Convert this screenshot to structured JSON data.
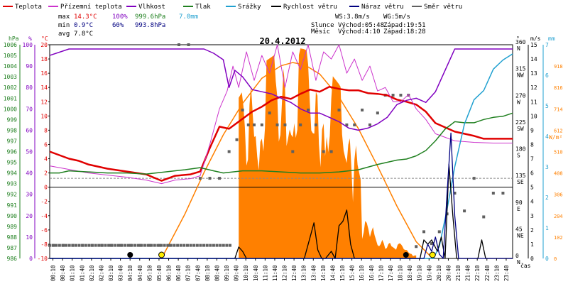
{
  "legend": {
    "items": [
      {
        "label": "Teplota",
        "color": "#e00000"
      },
      {
        "label": "Přízemní teplota",
        "color": "#cc33cc"
      },
      {
        "label": "Vlhkost",
        "color": "#8000c0"
      },
      {
        "label": "Tlak",
        "color": "#208020"
      },
      {
        "label": "Srážky",
        "color": "#20a0d0"
      },
      {
        "label": "Rychlost větru",
        "color": "#000000"
      },
      {
        "label": "Náraz větru",
        "color": "#000080"
      },
      {
        "label": "Směr větru",
        "color": "#606060"
      }
    ]
  },
  "stats": {
    "max_label": "max",
    "max_temp": "14.3°C",
    "max_hum": "100%",
    "max_press": "999.6hPa",
    "rain_total": "7.0mm",
    "min_label": "min",
    "min_temp": "0.9°C",
    "min_hum": "60%",
    "min_press": "993.8hPa",
    "avg_label": "avg",
    "avg_temp": "7.8°C"
  },
  "wind_info": {
    "ws": "WS:3.8m/s",
    "wg": "WG:5m/s"
  },
  "sun_info": {
    "label": "Slunce",
    "rise": "Východ:05:48",
    "set": "Západ:19:51"
  },
  "moon_info": {
    "label": "Měsíc",
    "rise": "Východ:4:10",
    "set": "Západ:18:28"
  },
  "title": "20.4.2012",
  "axis_units": {
    "hpa": "hPa",
    "pct": "%",
    "degc": "°C",
    "deg": "°",
    "ms": "m/s",
    "mm": "mm",
    "wm2": "W/m²",
    "time": "čas"
  },
  "chart_data": {
    "type": "line",
    "title": "20.4.2012",
    "x_ticks": [
      "00:10",
      "00:40",
      "01:10",
      "01:40",
      "02:10",
      "02:40",
      "03:10",
      "03:40",
      "04:10",
      "04:40",
      "05:10",
      "05:40",
      "06:10",
      "06:40",
      "07:10",
      "07:40",
      "08:10",
      "08:40",
      "09:10",
      "09:40",
      "10:10",
      "10:40",
      "11:10",
      "11:40",
      "12:10",
      "12:40",
      "13:10",
      "13:40",
      "14:10",
      "14:40",
      "15:10",
      "15:40",
      "16:10",
      "16:40",
      "17:10",
      "17:40",
      "18:10",
      "18:40",
      "19:10",
      "19:40",
      "20:10",
      "20:40",
      "21:10",
      "21:40",
      "22:10",
      "22:40",
      "23:10",
      "23:40"
    ],
    "xlim": [
      0,
      24
    ],
    "axes": {
      "temp_c": {
        "ticks": [
          -10,
          -8,
          -6,
          -4,
          -2,
          0,
          2,
          4,
          6,
          8,
          10,
          12,
          14,
          16,
          18,
          20
        ],
        "range": [
          -10,
          20
        ]
      },
      "pressure_hpa": {
        "ticks": [
          986,
          987,
          988,
          989,
          990,
          991,
          992,
          993,
          994,
          995,
          996,
          997,
          998,
          999,
          1000,
          1001,
          1002,
          1003,
          1004,
          1005,
          1006
        ],
        "range": [
          986,
          1006
        ]
      },
      "humidity_pct": {
        "ticks": [
          0,
          10,
          20,
          30,
          40,
          50,
          60,
          70,
          80,
          90,
          100
        ],
        "range": [
          0,
          100
        ]
      },
      "wind_dir_deg": {
        "ticks": [
          0,
          45,
          90,
          135,
          180,
          225,
          270,
          315,
          360
        ],
        "labels": [
          "N",
          "NE",
          "E",
          "SE",
          "S",
          "SW",
          "W",
          "NW",
          "N"
        ],
        "range": [
          0,
          360
        ]
      },
      "wind_ms": {
        "ticks": [
          0,
          1,
          2,
          3,
          4,
          5,
          6,
          7,
          8,
          9,
          10,
          11,
          12,
          13,
          14,
          15
        ],
        "range": [
          0,
          15
        ]
      },
      "rain_mm": {
        "ticks": [
          0,
          1,
          2,
          3,
          4,
          5,
          6,
          7
        ],
        "range": [
          0,
          7
        ]
      },
      "solar_wm2": {
        "ticks": [
          0,
          102,
          204,
          306,
          408,
          510,
          612,
          714,
          816,
          918
        ],
        "range": [
          0,
          1020
        ]
      }
    },
    "series": [
      {
        "name": "Teplota",
        "axis": "temp_c",
        "color": "#e00000",
        "x": [
          0,
          0.5,
          1,
          1.5,
          2,
          3,
          4,
          5,
          5.8,
          6.5,
          7.3,
          7.8,
          8.3,
          8.8,
          9.3,
          10,
          10.5,
          11,
          11.5,
          12,
          12.5,
          13,
          13.5,
          14,
          14.5,
          15,
          15.5,
          16,
          16.5,
          17,
          17.5,
          18,
          18.5,
          19,
          19.5,
          20,
          20.5,
          21,
          21.5,
          22,
          22.5,
          23,
          23.5,
          24
        ],
        "y": [
          5,
          4.5,
          4,
          3.7,
          3.2,
          2.6,
          2.2,
          1.8,
          0.9,
          1.6,
          1.8,
          2.2,
          5.5,
          8.5,
          8.2,
          9.6,
          10.6,
          11.3,
          12.2,
          12.7,
          12.4,
          13.1,
          13.7,
          13.4,
          14.1,
          13.8,
          13.6,
          13.6,
          13.2,
          13.1,
          12.9,
          12.3,
          12,
          11.6,
          10.6,
          9,
          8.4,
          7.8,
          7.5,
          7.2,
          6.8,
          6.8,
          6.8,
          6.8
        ]
      },
      {
        "name": "Přízemní teplota",
        "axis": "temp_c",
        "color": "#cc33cc",
        "x": [
          0,
          1,
          2,
          3,
          4,
          5,
          5.8,
          6.5,
          7.3,
          7.8,
          8.3,
          8.8,
          9.2,
          9.5,
          9.8,
          10.2,
          10.6,
          11,
          11.4,
          11.8,
          12.2,
          12.6,
          13,
          13.4,
          13.8,
          14.2,
          14.6,
          15,
          15.4,
          15.8,
          16.2,
          16.6,
          17,
          17.4,
          17.8,
          18.2,
          18.6,
          19,
          19.5,
          20,
          20.5,
          21,
          22,
          23,
          24
        ],
        "y": [
          3,
          2.5,
          2,
          1.7,
          1.4,
          1,
          0.5,
          1,
          1.2,
          1.6,
          6,
          11,
          13.5,
          17,
          14,
          19,
          15,
          18.5,
          16,
          20,
          14,
          19,
          16.5,
          20,
          15,
          19,
          18,
          20,
          16,
          18,
          15,
          17,
          13.5,
          14,
          12,
          12,
          13,
          11,
          9.5,
          7.5,
          7,
          6.5,
          6.3,
          6.2,
          6.2
        ]
      },
      {
        "name": "Vlhkost",
        "axis": "humidity_pct",
        "color": "#8000c0",
        "x": [
          0,
          1,
          2,
          3,
          4,
          5,
          6,
          7,
          7.5,
          8,
          8.5,
          9,
          9.3,
          9.6,
          10,
          10.5,
          11,
          11.5,
          12,
          12.5,
          13,
          13.5,
          14,
          14.5,
          15,
          15.5,
          16,
          16.5,
          17,
          17.5,
          18,
          18.5,
          19,
          19.5,
          20,
          20.5,
          21,
          21.5,
          22,
          23,
          24
        ],
        "y": [
          95,
          98,
          98,
          98,
          98,
          98,
          98,
          98,
          98,
          98,
          96,
          93,
          80,
          88,
          85,
          79,
          78,
          77,
          75,
          73,
          70,
          68,
          68,
          66,
          64,
          61,
          60,
          61,
          63,
          66,
          72,
          74,
          75,
          73,
          78,
          88,
          98,
          98,
          98,
          98,
          98
        ]
      },
      {
        "name": "Tlak",
        "axis": "pressure_hpa",
        "color": "#208020",
        "x": [
          0,
          0.5,
          1,
          2,
          3,
          4,
          5,
          6,
          7,
          7.8,
          8.5,
          9,
          10,
          11,
          12,
          13,
          14,
          15,
          16,
          17,
          18,
          18.5,
          19,
          19.5,
          20,
          20.5,
          21,
          21.5,
          22,
          22.5,
          23,
          23.5,
          24
        ],
        "y": [
          994,
          994,
          994.2,
          994.1,
          994,
          994,
          993.9,
          994.1,
          994.3,
          994.5,
          994.2,
          994,
          994.2,
          994.2,
          994.1,
          994,
          994,
          994.1,
          994.3,
          994.8,
          995.2,
          995.3,
          995.6,
          996.1,
          997,
          998.1,
          998.8,
          998.7,
          998.7,
          999,
          999.2,
          999.3,
          999.6
        ]
      },
      {
        "name": "Srážky",
        "axis": "rain_mm",
        "color": "#20a0d0",
        "x": [
          0,
          19.9,
          20.2,
          20.6,
          21,
          21.5,
          22,
          22.5,
          23,
          23.5,
          24
        ],
        "y": [
          0,
          0,
          0.4,
          1.6,
          3,
          4.4,
          5.2,
          5.5,
          6.2,
          6.5,
          6.7
        ]
      },
      {
        "name": "Rychlost větru",
        "axis": "wind_ms",
        "color": "#000000",
        "x": [
          0,
          9.6,
          9.8,
          10,
          10.2,
          13.2,
          13.5,
          13.7,
          13.9,
          14.1,
          14.3,
          14.6,
          14.8,
          15,
          15.2,
          15.4,
          15.6,
          15.8,
          16,
          19.2,
          19.4,
          19.6,
          19.8,
          20.1,
          20.3,
          20.5,
          20.7,
          20.9,
          21.1,
          21.3,
          22.2,
          22.4,
          22.6,
          22.8,
          24
        ],
        "y": [
          0,
          0,
          0.8,
          0.5,
          0,
          0,
          1.5,
          2.5,
          0.6,
          0,
          0,
          0.5,
          0,
          2.3,
          2.6,
          3.4,
          1,
          0,
          0,
          0,
          1.3,
          1,
          1.3,
          0.5,
          1.5,
          0,
          6.6,
          3,
          0,
          0,
          0,
          1.3,
          0,
          0,
          0
        ]
      },
      {
        "name": "Náraz větru",
        "axis": "wind_ms",
        "color": "#000080",
        "x": [
          0,
          19.4,
          19.6,
          19.8,
          20,
          20.2,
          20.4,
          20.6,
          20.8,
          21,
          21.2,
          22.5,
          23,
          24
        ],
        "y": [
          0,
          0,
          1,
          0.5,
          1.5,
          0.3,
          0,
          4.5,
          8.8,
          3,
          0,
          0,
          0,
          0
        ]
      },
      {
        "name": "Slunce",
        "axis": "solar_wm2",
        "color": "#ff8000",
        "x": [
          5.8,
          7,
          8,
          9,
          10,
          11,
          12,
          12.6,
          13.2,
          14,
          15,
          16,
          17,
          18,
          19,
          19.85
        ],
        "y": [
          0,
          210,
          410,
          590,
          740,
          860,
          920,
          935,
          925,
          880,
          770,
          620,
          440,
          250,
          80,
          0
        ]
      }
    ],
    "wind_dir_points": {
      "axis": "wind_dir_deg",
      "color": "#606060",
      "x": [
        0.2,
        0.7,
        1.2,
        1.7,
        2.2,
        2.7,
        3.2,
        3.7,
        4.2,
        4.7,
        5.2,
        5.7,
        6.2,
        6.7,
        7.2,
        7.8,
        8.3,
        8.8,
        9.3,
        9.7,
        10,
        10.3,
        10.6,
        11,
        11.4,
        11.8,
        12.2,
        12.6,
        13,
        13.4,
        13.8,
        14.2,
        14.6,
        15,
        15.4,
        15.8,
        16.2,
        16.6,
        17,
        17.4,
        17.8,
        18.2,
        18.6,
        19,
        19.4,
        19.8,
        20.2,
        20.6,
        21,
        21.5,
        22,
        22.5,
        23,
        23.5
      ],
      "y": [
        22,
        22,
        22,
        22,
        22,
        22,
        22,
        22,
        22,
        22,
        22,
        22,
        22,
        360,
        360,
        135,
        135,
        135,
        180,
        200,
        250,
        225,
        225,
        225,
        245,
        225,
        225,
        180,
        225,
        250,
        225,
        180,
        180,
        250,
        225,
        225,
        250,
        225,
        245,
        275,
        275,
        275,
        275,
        20,
        45,
        25,
        45,
        75,
        110,
        80,
        135,
        70,
        110,
        110
      ]
    },
    "markers": [
      {
        "name": "moonrise",
        "x": 4.17,
        "kind": "moon"
      },
      {
        "name": "sunrise",
        "x": 5.8,
        "kind": "sun"
      },
      {
        "name": "moonset",
        "x": 18.47,
        "kind": "moon"
      },
      {
        "name": "sunset",
        "x": 19.85,
        "kind": "sun"
      }
    ]
  }
}
